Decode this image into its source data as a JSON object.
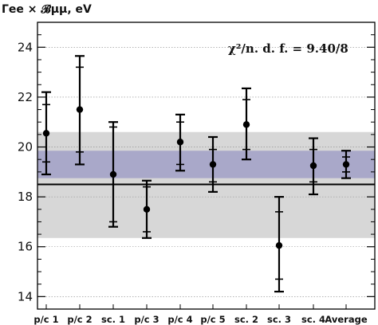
{
  "chart_data": {
    "type": "scatter",
    "ylabel": "Γee × 𝓑μμ, eV",
    "annotation": "χ²/n. d. f. = 9.40/8",
    "categories": [
      "p/c 1",
      "p/c 2",
      "sc. 1",
      "p/c 3",
      "p/c 4",
      "p/c 5",
      "sc. 2",
      "sc. 3",
      "sc. 4",
      "Average"
    ],
    "series": [
      {
        "values": [
          20.55,
          21.5,
          18.9,
          17.5,
          20.2,
          19.3,
          20.9,
          16.05,
          19.25,
          19.3
        ],
        "stat_err_low": [
          19.4,
          19.8,
          17.0,
          16.6,
          19.3,
          18.6,
          19.9,
          14.7,
          18.6,
          19.0
        ],
        "stat_err_high": [
          21.7,
          23.2,
          20.8,
          18.4,
          21.0,
          19.9,
          21.9,
          17.4,
          19.9,
          19.6
        ],
        "tot_err_low": [
          18.9,
          19.3,
          16.8,
          16.35,
          19.05,
          18.2,
          19.5,
          14.2,
          18.1,
          18.75
        ],
        "tot_err_high": [
          22.2,
          23.65,
          21.0,
          18.65,
          21.3,
          20.4,
          22.35,
          18.0,
          20.35,
          19.85
        ]
      }
    ],
    "reference_line": 18.5,
    "band_outer": [
      16.35,
      20.6
    ],
    "band_inner": [
      18.75,
      19.85
    ],
    "ylim": [
      13.5,
      25.0
    ],
    "yticks": [
      14,
      16,
      18,
      20,
      22,
      24
    ],
    "grid": "horizontal dashed",
    "colors": {
      "outer_band": "#d7d7d7",
      "inner_band": "#a9a8c9",
      "markers": "#000000"
    }
  }
}
